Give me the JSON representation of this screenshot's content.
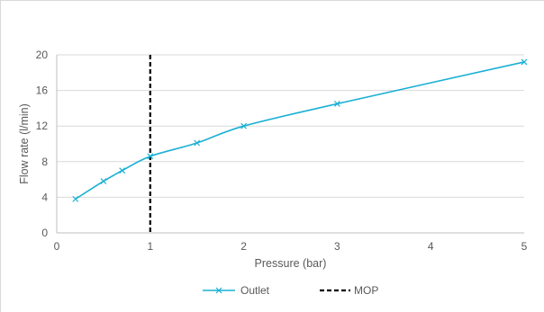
{
  "chart_data": {
    "type": "line",
    "title": "",
    "xlabel": "Pressure (bar)",
    "ylabel": "Flow rate (l/min)",
    "xlim": [
      0,
      5
    ],
    "ylim": [
      0,
      20
    ],
    "xticks": [
      "0",
      "1",
      "2",
      "3",
      "4",
      "5"
    ],
    "yticks": [
      "0",
      "4",
      "8",
      "12",
      "16",
      "20"
    ],
    "grid": "horizontal",
    "legend": "bottom",
    "series": [
      {
        "name": "Outlet",
        "color": "#1ab0d4",
        "marker": "x",
        "x": [
          0.2,
          0.5,
          0.7,
          1.0,
          1.5,
          2.0,
          3.0,
          5.0
        ],
        "y": [
          3.8,
          5.8,
          7.0,
          8.6,
          10.1,
          12.0,
          14.5,
          19.2
        ]
      }
    ],
    "reference_lines": [
      {
        "name": "MOP",
        "x": 1.0,
        "color": "#000000",
        "style": "dashed"
      }
    ]
  }
}
